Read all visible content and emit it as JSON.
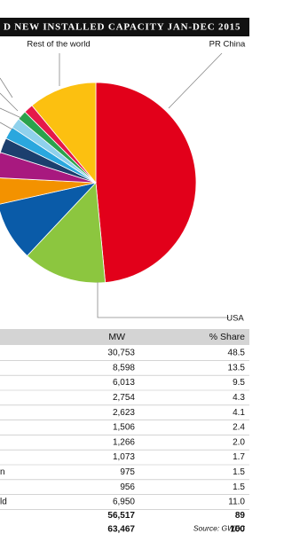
{
  "title": "D NEW INSTALLED CAPACITY JAN-DEC 2015",
  "chart_data": {
    "type": "pie",
    "categories": [
      "PR China",
      "USA",
      null,
      null,
      null,
      null,
      null,
      null,
      null,
      null,
      "Rest of the world"
    ],
    "values": [
      48.5,
      13.5,
      9.5,
      4.3,
      4.1,
      2.4,
      2.0,
      1.7,
      1.5,
      1.5,
      11.0
    ],
    "colors": [
      "#e2001a",
      "#8cc63f",
      "#0a5ba8",
      "#f39200",
      "#a8197f",
      "#1c3f6e",
      "#2aa7de",
      "#8fd1ec",
      "#2ba24c",
      "#e5194a",
      "#fcc010"
    ]
  },
  "table": {
    "header": [
      "MW",
      "% Share"
    ],
    "rows": [
      {
        "mw": "30,753",
        "share": "48.5"
      },
      {
        "mw": "8,598",
        "share": "13.5"
      },
      {
        "mw": "6,013",
        "share": "9.5"
      },
      {
        "mw": "2,754",
        "share": "4.3"
      },
      {
        "mw": "2,623",
        "share": "4.1"
      },
      {
        "mw": "1,506",
        "share": "2.4"
      },
      {
        "mw": "1,266",
        "share": "2.0"
      },
      {
        "mw": "1,073",
        "share": "1.7"
      },
      {
        "label": "n",
        "mw": "975",
        "share": "1.5"
      },
      {
        "mw": "956",
        "share": "1.5"
      },
      {
        "label": "ld",
        "mw": "6,950",
        "share": "11.0"
      }
    ],
    "totals": [
      {
        "mw": "56,517",
        "share": "89"
      },
      {
        "mw": "63,467",
        "share": "100"
      }
    ],
    "source": "Source: GWEC"
  }
}
